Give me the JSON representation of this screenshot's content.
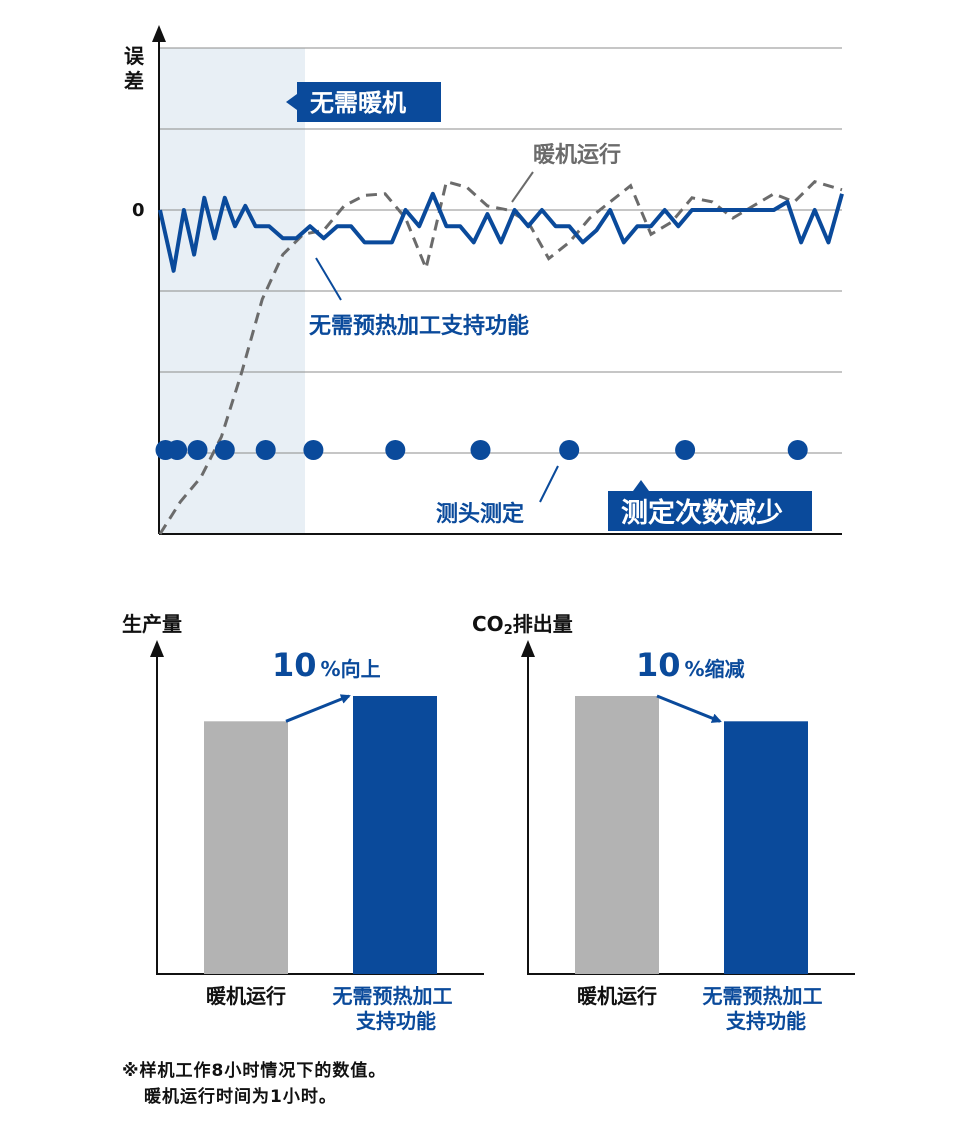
{
  "colors": {
    "accent": "#0a4a9b",
    "gray_bar": "#b3b3b3",
    "dashed": "#6b6b6b",
    "shade": "#e8eff5",
    "grid": "#8c8c8c"
  },
  "chart_data": [
    {
      "type": "line",
      "ylabel": "误差",
      "y_tick_label": "0",
      "annotations": {
        "no_warmup_box": "无需暖机",
        "warmup_label": "暖机运行",
        "no_preheat_label": "无需预热加工支持功能",
        "probe_label": "测头测定",
        "fewer_measure_box": "测定次数减少"
      },
      "series": [
        {
          "name": "暖机运行",
          "style": "dashed",
          "x": [
            0,
            3,
            6,
            9,
            12,
            15,
            18,
            21,
            24,
            27,
            30,
            33,
            36,
            39,
            42,
            45,
            48,
            51,
            54,
            57,
            60,
            63,
            66,
            69,
            72,
            75,
            78,
            81,
            84,
            87,
            90,
            93,
            96,
            100
          ],
          "y": [
            -4,
            -3.6,
            -3.3,
            -2.8,
            -2.0,
            -1.1,
            -0.55,
            -0.3,
            -0.25,
            0.05,
            0.18,
            0.2,
            -0.1,
            -0.72,
            0.35,
            0.28,
            0.05,
            0.0,
            -0.15,
            -0.6,
            -0.4,
            -0.1,
            0.1,
            0.3,
            -0.3,
            -0.15,
            0.15,
            0.1,
            -0.1,
            0.05,
            0.2,
            0.1,
            0.35,
            0.25
          ]
        },
        {
          "name": "无需预热加工支持功能",
          "style": "solid",
          "x": [
            0,
            2,
            3.5,
            5,
            6.5,
            8,
            9.5,
            11,
            12.5,
            14,
            16,
            18,
            20,
            22,
            24,
            26,
            28,
            30,
            32,
            34,
            36,
            38,
            40,
            42,
            44,
            46,
            48,
            50,
            52,
            54,
            56,
            58,
            60,
            62,
            64,
            66,
            68,
            70,
            72,
            74,
            76,
            78,
            80,
            82,
            84,
            86,
            88,
            90,
            92,
            94,
            96,
            98,
            100
          ],
          "y": [
            0,
            -0.75,
            0,
            -0.55,
            0.15,
            -0.35,
            0.15,
            -0.2,
            0.05,
            -0.2,
            -0.2,
            -0.35,
            -0.35,
            -0.2,
            -0.35,
            -0.2,
            -0.2,
            -0.4,
            -0.4,
            -0.4,
            0,
            -0.2,
            0.2,
            -0.2,
            -0.2,
            -0.4,
            -0.05,
            -0.4,
            0,
            -0.2,
            0,
            -0.2,
            -0.2,
            -0.4,
            -0.25,
            0,
            -0.4,
            -0.2,
            -0.2,
            0,
            -0.2,
            0,
            0,
            0,
            0,
            0,
            0,
            0,
            0.1,
            -0.4,
            0,
            -0.4,
            0.2
          ]
        }
      ],
      "probe_points_x": [
        0.8,
        2.5,
        5.5,
        9.5,
        15.5,
        22.5,
        34.5,
        47,
        60,
        77,
        93.5
      ]
    },
    {
      "type": "bar",
      "ylabel": "生产量",
      "categories": [
        "暖机运行",
        "无需预热加工\n支持功能"
      ],
      "values": [
        100,
        110
      ],
      "ylim": [
        0,
        110
      ],
      "annotation_num": "10",
      "annotation_unit": "%向上"
    },
    {
      "type": "bar",
      "ylabel": "CO2排出量",
      "ylabel_main": "CO",
      "ylabel_sub": "2",
      "ylabel_rest": "排出量",
      "categories": [
        "暖机运行",
        "无需预热加工\n支持功能"
      ],
      "values": [
        110,
        100
      ],
      "ylim": [
        0,
        110
      ],
      "annotation_num": "10",
      "annotation_unit": "%缩减"
    }
  ],
  "note_line1": "※样机工作8小时情况下的数值。",
  "note_line2": "暖机运行时间为1小时。"
}
